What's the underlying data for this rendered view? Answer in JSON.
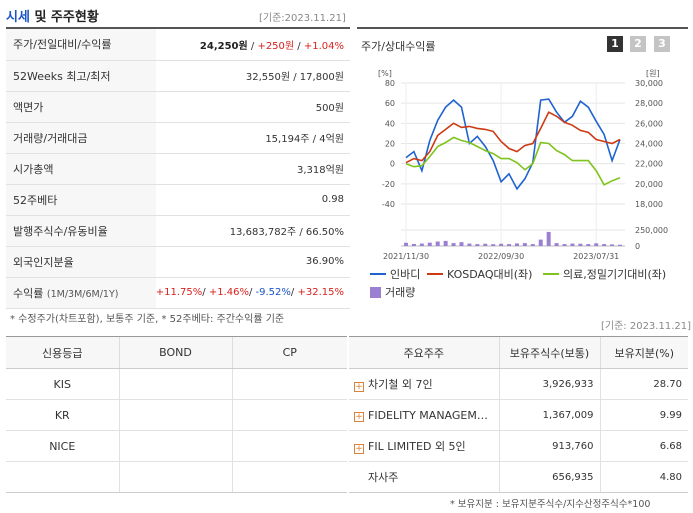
{
  "header": {
    "title_part1": "시세",
    "title_part2": " 및 주주현황",
    "date": "[기준:2023.11.21]"
  },
  "price_table": {
    "rows": [
      {
        "label": "주가/전일대비/수익률",
        "v1": "24,250원",
        "v2": "+250원",
        "v3": "+1.04%"
      },
      {
        "label": "52Weeks 최고/최저",
        "value": "32,550원 / 17,800원"
      },
      {
        "label": "액면가",
        "value": "500원"
      },
      {
        "label": "거래량/거래대금",
        "value": "15,194주 / 4억원"
      },
      {
        "label": "시가총액",
        "value": "3,318억원"
      },
      {
        "label": "52주베타",
        "value": "0.98"
      },
      {
        "label": "발행주식수/유동비율",
        "value": "13,683,782주 / 66.50%"
      },
      {
        "label": "외국인지분율",
        "value": "36.90%"
      }
    ],
    "returns": {
      "label": "수익률",
      "label_small": "(1M/3M/6M/1Y)",
      "r1m": "+11.75%",
      "r3m": "+1.46%",
      "r6m": "-9.52%",
      "r1y": "+32.15%"
    },
    "note": "* 수정주가(차트포함), 보통주 기준, * 52주베타: 주간수익률 기준"
  },
  "chart_panel": {
    "title": "주가/상대수익률",
    "pages": [
      "1",
      "2",
      "3"
    ],
    "active_page": "1",
    "legend": {
      "price": "인바디",
      "kosdaq": "KOSDAQ대비(좌)",
      "sector": "의료,정밀기기대비(좌)",
      "volume": "거래량"
    },
    "colors": {
      "price": "#1f63d1",
      "kosdaq": "#cc3a14",
      "sector": "#7fc31c",
      "volume": "#9b7fd1"
    }
  },
  "chart_data": {
    "type": "line",
    "left_unit": "[%]",
    "right_unit": "[원]",
    "left_ticks": [
      "80",
      "60",
      "40",
      "20",
      "0",
      "-20",
      "-40"
    ],
    "right_ticks": [
      "30,000",
      "28,000",
      "26,000",
      "24,000",
      "22,000",
      "20,000",
      "18,000"
    ],
    "volume_ticks": [
      "250,000",
      "0"
    ],
    "x_labels": [
      "2021/11/30",
      "2022/09/30",
      "2023/07/31"
    ],
    "left_range": [
      -40,
      80
    ],
    "right_range": [
      18000,
      30000
    ],
    "volume_range": [
      0,
      250000
    ],
    "series": [
      {
        "name": "인바디",
        "axis": "right",
        "values": [
          22600,
          23200,
          21300,
          24300,
          26300,
          27600,
          28300,
          27600,
          24000,
          24700,
          23700,
          22300,
          20200,
          21000,
          19500,
          20500,
          22100,
          28300,
          28400,
          27100,
          26100,
          26700,
          28200,
          27600,
          26200,
          24900,
          22300,
          24400
        ]
      },
      {
        "name": "KOSDAQ대비(좌)",
        "axis": "left",
        "values": [
          1,
          5,
          3,
          12,
          28,
          34,
          40,
          36,
          37,
          35,
          34,
          32,
          22,
          15,
          12,
          18,
          20,
          35,
          51,
          47,
          41,
          38,
          33,
          31,
          24,
          22,
          20,
          24
        ]
      },
      {
        "name": "의료,정밀기기대비(좌)",
        "axis": "left",
        "values": [
          0,
          -3,
          -2,
          7,
          17,
          21,
          26,
          23,
          21,
          17,
          13,
          10,
          5,
          5,
          1,
          -6,
          0,
          21,
          20,
          13,
          9,
          3,
          3,
          3,
          -7,
          -21,
          -17,
          -14
        ]
      }
    ],
    "volume": [
      50000,
      32000,
      38000,
      52000,
      70000,
      80000,
      45000,
      60000,
      38000,
      30000,
      35000,
      28000,
      35000,
      30000,
      40000,
      45000,
      30000,
      100000,
      220000,
      45000,
      30000,
      38000,
      35000,
      30000,
      42000,
      30000,
      25000,
      20000
    ]
  },
  "credit_table": {
    "headers": [
      "신용등급",
      "BOND",
      "CP"
    ],
    "rows": [
      {
        "agency": "KIS",
        "bond": "",
        "cp": ""
      },
      {
        "agency": "KR",
        "bond": "",
        "cp": ""
      },
      {
        "agency": "NICE",
        "bond": "",
        "cp": ""
      }
    ]
  },
  "holders_table": {
    "date": "[기준: 2023.11.21]",
    "headers": [
      "주요주주",
      "보유주식수(보통)",
      "보유지분(%)"
    ],
    "rows": [
      {
        "name": "차기철 외 7인",
        "shares": "3,926,933",
        "pct": "28.70",
        "expand": true
      },
      {
        "name": "FIDELITY MANAGEMENT & RESEARCH",
        "shares": "1,367,009",
        "pct": "9.99",
        "expand": true
      },
      {
        "name": "FIL LIMITED 외 5인",
        "shares": "913,760",
        "pct": "6.68",
        "expand": true
      },
      {
        "name": "자사주",
        "shares": "656,935",
        "pct": "4.80",
        "expand": false
      }
    ],
    "note": "* 보유지분 : 보유지분주식수/지수산정주식수*100"
  }
}
